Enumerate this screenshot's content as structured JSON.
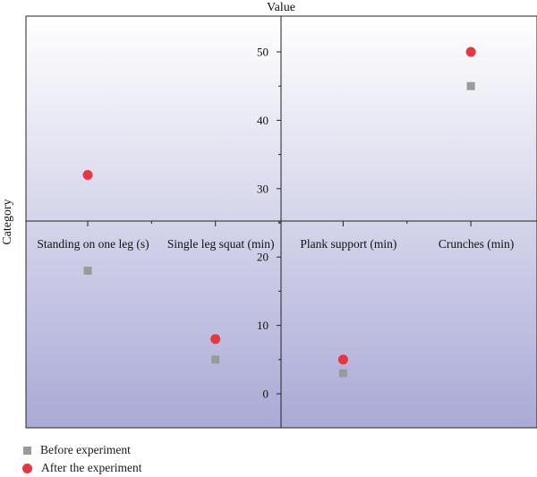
{
  "chart_data": {
    "type": "scatter",
    "title": "",
    "xlabel": "Value",
    "ylabel": "Category",
    "categories": [
      "Standing on one leg (s)",
      "Single leg squat (min)",
      "Plank support (min)",
      "Crunches (min)"
    ],
    "series": [
      {
        "name": "Before experiment",
        "values": [
          18,
          5,
          3,
          45
        ],
        "color": "#9a9a9a",
        "marker": "square"
      },
      {
        "name": "After the experiment",
        "values": [
          32,
          8,
          5,
          50
        ],
        "color": "#e8363f",
        "marker": "circle"
      }
    ],
    "ylim": [
      -5,
      55
    ],
    "yticks": [
      0,
      10,
      20,
      30,
      40,
      50
    ],
    "background_gradient": [
      "#ffffff",
      "#a9aad6"
    ],
    "grid": false,
    "legend_position": "bottom-left"
  }
}
